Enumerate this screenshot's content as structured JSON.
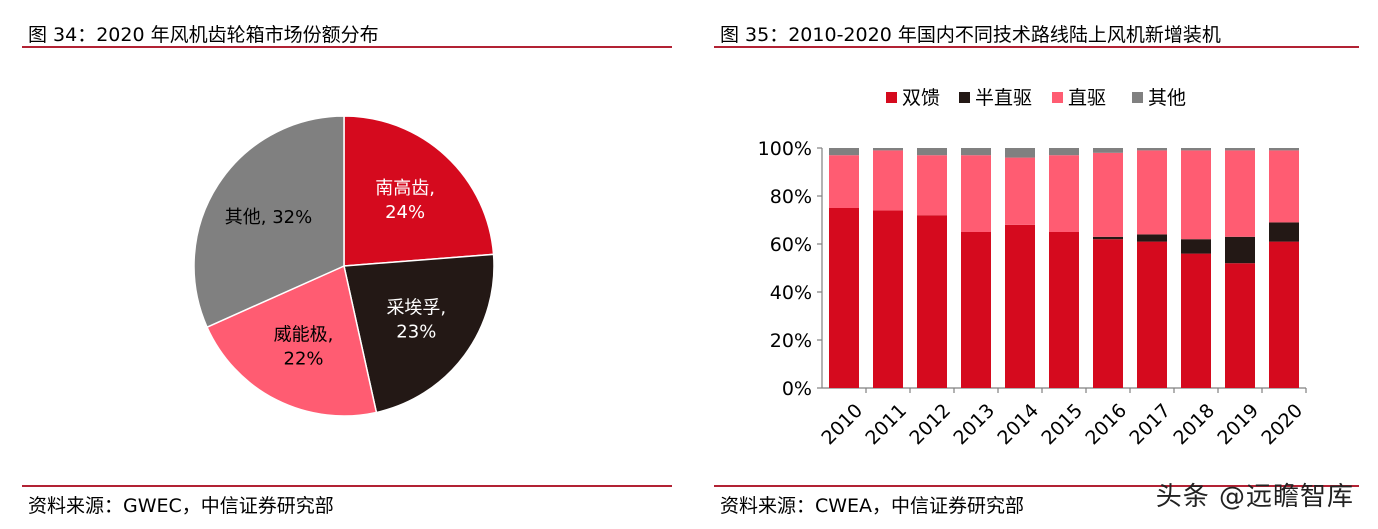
{
  "left": {
    "title": "图 34：2020 年风机齿轮箱市场份额分布",
    "source": "资料来源：GWEC，中信证券研究部"
  },
  "right": {
    "title": "图 35：2010-2020 年国内不同技术路线陆上风机新增装机",
    "source": "资料来源：CWEA，中信证券研究部"
  },
  "watermark": "头条 @远瞻智库",
  "chart_data": [
    {
      "type": "pie",
      "categories": [
        "南高齿",
        "采埃孚",
        "威能极",
        "其他"
      ],
      "values": [
        24,
        23,
        22,
        32
      ],
      "value_labels": [
        "24%",
        "23%",
        "22%",
        "32%"
      ],
      "colors": [
        "#d50a1e",
        "#231815",
        "#ff5c72",
        "#808080"
      ],
      "title": "",
      "legend": "none"
    },
    {
      "type": "bar",
      "stacked": true,
      "categories": [
        "2010",
        "2011",
        "2012",
        "2013",
        "2014",
        "2015",
        "2016",
        "2017",
        "2018",
        "2019",
        "2020"
      ],
      "series": [
        {
          "name": "双馈",
          "color": "#d50a1e",
          "values": [
            75,
            74,
            72,
            65,
            68,
            65,
            62,
            61,
            56,
            52,
            61
          ]
        },
        {
          "name": "半直驱",
          "color": "#231815",
          "values": [
            0,
            0,
            0,
            0,
            0,
            0,
            1,
            3,
            6,
            11,
            8
          ]
        },
        {
          "name": "直驱",
          "color": "#ff5c72",
          "values": [
            22,
            25,
            25,
            32,
            28,
            32,
            35,
            35,
            37,
            36,
            30
          ]
        },
        {
          "name": "其他",
          "color": "#808080",
          "values": [
            3,
            1,
            3,
            3,
            4,
            3,
            2,
            1,
            1,
            1,
            1
          ]
        }
      ],
      "yticks": [
        "0%",
        "20%",
        "40%",
        "60%",
        "80%",
        "100%"
      ],
      "ylim": [
        0,
        100
      ],
      "xlabel": "",
      "ylabel": "",
      "legend": "top",
      "grid": false
    }
  ]
}
